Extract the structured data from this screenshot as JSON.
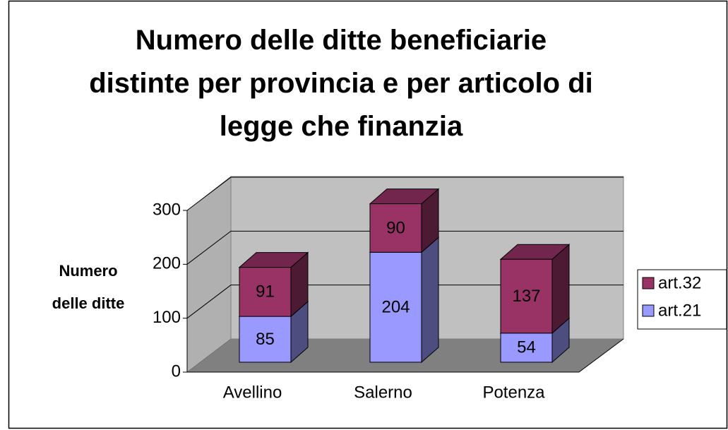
{
  "chart_data": {
    "type": "bar",
    "stacked": true,
    "title": "Numero delle ditte beneficiarie distinte per provincia e per articolo di legge che finanzia",
    "y_label": "Numero delle ditte",
    "categories": [
      "Avellino",
      "Salerno",
      "Potenza"
    ],
    "series": [
      {
        "name": "art.21",
        "color": "#9999ff",
        "values": [
          85,
          204,
          54
        ]
      },
      {
        "name": "art.32",
        "color": "#993366",
        "values": [
          91,
          90,
          137
        ]
      }
    ],
    "ylim": [
      0,
      300
    ],
    "yticks": [
      0,
      100,
      200,
      300
    ],
    "grid": true,
    "legend": "right"
  }
}
